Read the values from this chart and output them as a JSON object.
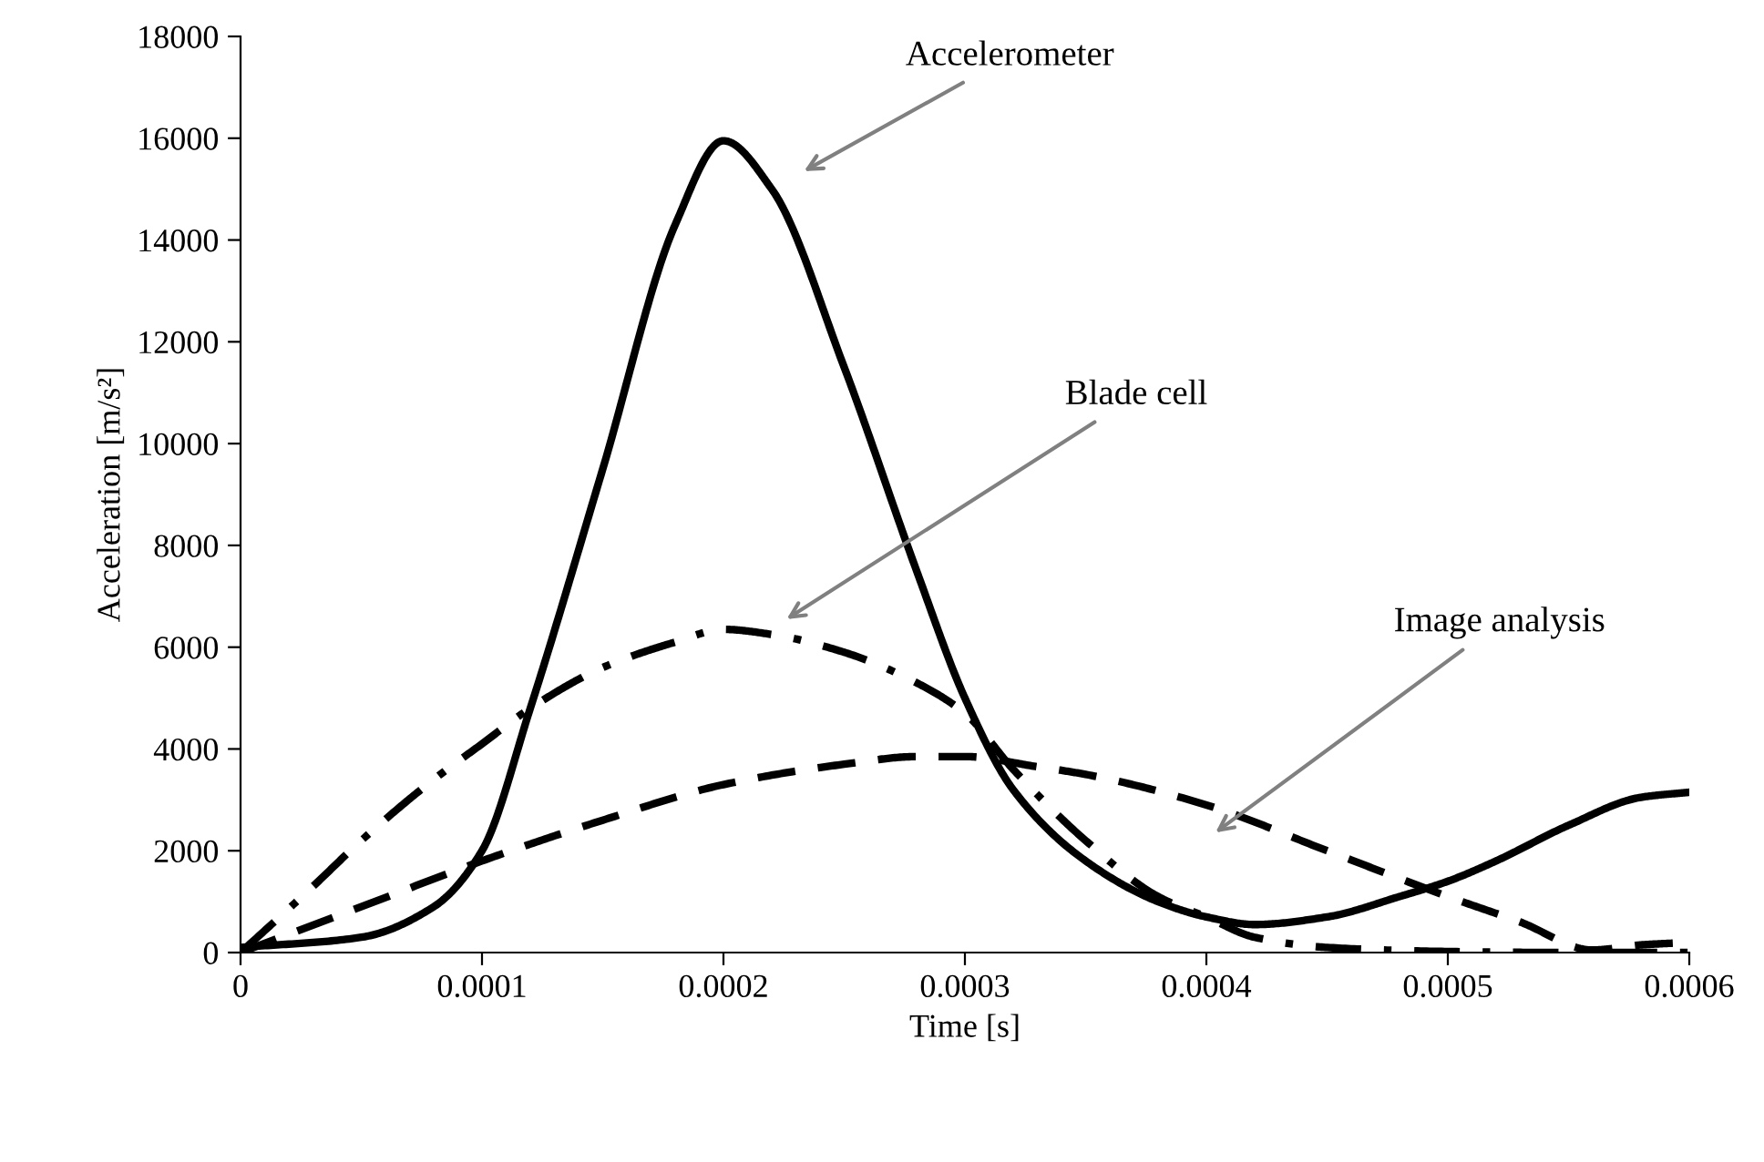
{
  "chart_data": {
    "type": "line",
    "xlabel": "Time [s]",
    "ylabel": "Acceleration [m/s²]",
    "xlim": [
      0,
      0.0006
    ],
    "xticks": [
      0,
      0.0001,
      0.0002,
      0.0003,
      0.0004,
      0.0005,
      0.0006
    ],
    "ylim": [
      0,
      18000
    ],
    "yticks": [
      0,
      2000,
      4000,
      6000,
      8000,
      10000,
      12000,
      14000,
      16000,
      18000
    ],
    "grid": false,
    "legend": false,
    "marker": "none",
    "series": [
      {
        "color": "#000000",
        "line_style": "solid",
        "x": [
          0,
          5e-05,
          8e-05,
          0.0001,
          0.00012,
          0.00015,
          0.00018,
          0.0002,
          0.00022,
          0.00025,
          0.00028,
          0.0003,
          0.00032,
          0.00035,
          0.00038,
          0.0004,
          0.00042,
          0.00045,
          0.00048,
          0.0005,
          0.00052,
          0.00055,
          0.00058,
          0.0006
        ],
        "values": [
          100,
          300,
          900,
          2000,
          4800,
          9500,
          14300,
          15950,
          15000,
          11500,
          7500,
          5000,
          3200,
          1800,
          1000,
          700,
          550,
          700,
          1100,
          1400,
          1800,
          2500,
          3050,
          3150
        ]
      },
      {
        "color": "#000000",
        "line_style": "dashdot",
        "x": [
          0,
          3e-05,
          5e-05,
          8e-05,
          0.0001,
          0.00012,
          0.00015,
          0.00018,
          0.0002,
          0.00022,
          0.00025,
          0.00028,
          0.0003,
          0.00032,
          0.00035,
          0.00038,
          0.0004,
          0.00042,
          0.00045,
          0.0005,
          0.00055,
          0.0006
        ],
        "values": [
          0,
          1300,
          2200,
          3400,
          4100,
          4800,
          5600,
          6100,
          6350,
          6250,
          5900,
          5300,
          4700,
          3600,
          2200,
          1100,
          700,
          300,
          100,
          20,
          0,
          0
        ]
      },
      {
        "color": "#000000",
        "line_style": "dashed",
        "x": [
          0,
          5e-05,
          0.0001,
          0.00015,
          0.0002,
          0.00025,
          0.00028,
          0.0003,
          0.00033,
          0.00035,
          0.0004,
          0.00045,
          0.0005,
          0.00053,
          0.00056,
          0.00058,
          0.0006
        ],
        "values": [
          0,
          900,
          1800,
          2600,
          3300,
          3700,
          3850,
          3850,
          3650,
          3500,
          2900,
          2000,
          1100,
          600,
          50,
          150,
          200
        ]
      }
    ],
    "annotations": [
      "Accelerometer",
      "Blade cell",
      "Image analysis"
    ]
  }
}
